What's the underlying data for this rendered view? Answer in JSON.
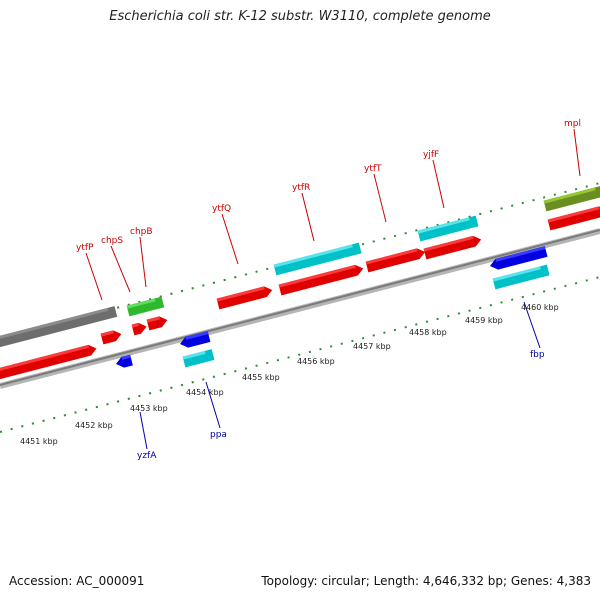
{
  "title": "Escherichia coli str. K-12 substr. W3110, complete genome",
  "footer": {
    "accession": "Accession: AC_000091",
    "summary": "Topology: circular; Length: 4,646,332 bp; Genes: 4,383"
  },
  "colors": {
    "forward_label": "#cc0000",
    "reverse_label": "#0000aa",
    "tick": "#2e8b2e",
    "backbone": "#8c8c8c"
  },
  "scale_labels": [
    "4451 kbp",
    "4452 kbp",
    "4453 kbp",
    "4454 kbp",
    "4455 kbp",
    "4456 kbp",
    "4457 kbp",
    "4458 kbp",
    "4459 kbp",
    "4460 kbp"
  ],
  "genes_top": [
    "ytfP",
    "chpS",
    "chpB",
    "ytfQ",
    "ytfR",
    "ytfT",
    "yjfF",
    "mpl"
  ],
  "genes_bottom": [
    "yzfA",
    "ppa",
    "fbp"
  ]
}
